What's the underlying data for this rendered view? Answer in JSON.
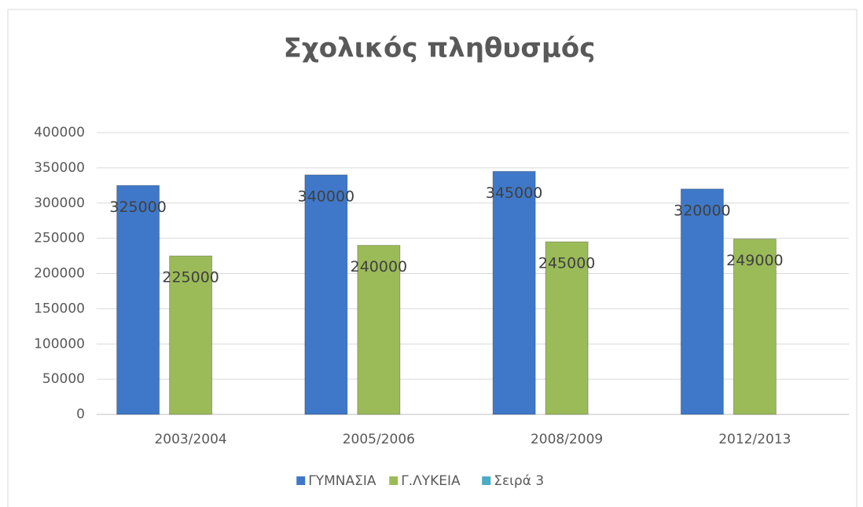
{
  "chart_data": {
    "type": "bar",
    "title": "Σχολικός πληθυσμός",
    "categories": [
      "2003/2004",
      "2005/2006",
      "2008/2009",
      "2012/2013"
    ],
    "series": [
      {
        "name": "ΓΥΜΝΑΣΙΑ",
        "color": "#3f78c8",
        "values": [
          325000,
          340000,
          345000,
          320000
        ]
      },
      {
        "name": "Γ.ΛΥΚΕΙΑ",
        "color": "#9bbb59",
        "values": [
          225000,
          240000,
          245000,
          249000
        ]
      },
      {
        "name": "Σειρά 3",
        "color": "#4bacc6",
        "values": [
          null,
          null,
          null,
          null
        ]
      }
    ],
    "ylim": [
      0,
      400000
    ],
    "yticks": [
      0,
      50000,
      100000,
      150000,
      200000,
      250000,
      300000,
      350000,
      400000
    ],
    "grid": true,
    "legend": "bottom",
    "data_labels": true
  }
}
